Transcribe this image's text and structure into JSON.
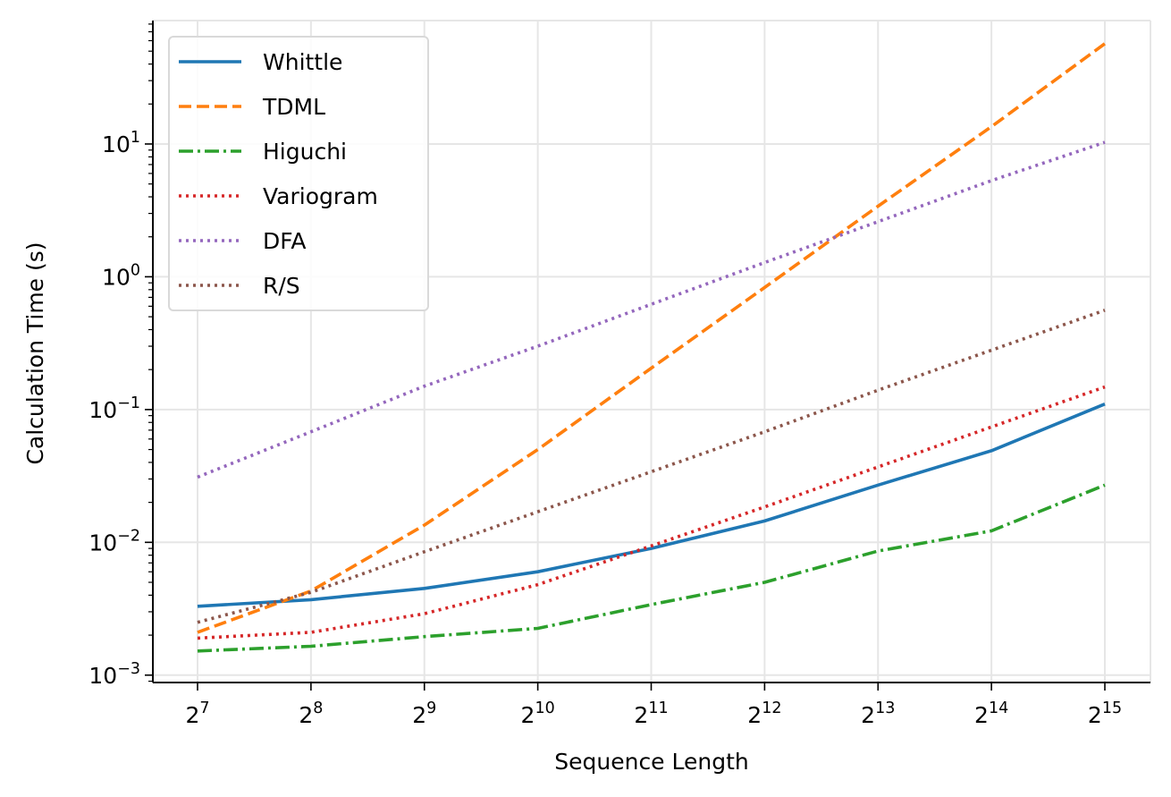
{
  "chart_data": {
    "type": "line",
    "xlabel": "Sequence Length",
    "ylabel": "Calculation Time (s)",
    "x_scale": "log2",
    "y_scale": "log10",
    "x": [
      128,
      256,
      512,
      1024,
      2048,
      4096,
      8192,
      16384,
      32768
    ],
    "x_ticks": [
      {
        "base": "2",
        "exp": "7"
      },
      {
        "base": "2",
        "exp": "8"
      },
      {
        "base": "2",
        "exp": "9"
      },
      {
        "base": "2",
        "exp": "10"
      },
      {
        "base": "2",
        "exp": "11"
      },
      {
        "base": "2",
        "exp": "12"
      },
      {
        "base": "2",
        "exp": "13"
      },
      {
        "base": "2",
        "exp": "14"
      },
      {
        "base": "2",
        "exp": "15"
      }
    ],
    "y_ticks": [
      {
        "base": "10",
        "exp": "−3",
        "value": 0.001
      },
      {
        "base": "10",
        "exp": "−2",
        "value": 0.01
      },
      {
        "base": "10",
        "exp": "−1",
        "value": 0.1
      },
      {
        "base": "10",
        "exp": "0",
        "value": 1
      },
      {
        "base": "10",
        "exp": "1",
        "value": 10
      }
    ],
    "ylim": [
      0.00088,
      85
    ],
    "grid": true,
    "legend_position": "top-left",
    "series": [
      {
        "name": "Whittle",
        "color": "#1f77b4",
        "style": "solid",
        "values": [
          0.0033,
          0.0037,
          0.0045,
          0.006,
          0.009,
          0.0145,
          0.027,
          0.049,
          0.11
        ]
      },
      {
        "name": "TDML",
        "color": "#ff7f0e",
        "style": "dashed",
        "values": [
          0.0021,
          0.0043,
          0.0135,
          0.05,
          0.205,
          0.83,
          3.4,
          13.5,
          57
        ]
      },
      {
        "name": "Higuchi",
        "color": "#2ca02c",
        "style": "dashdot",
        "values": [
          0.00152,
          0.00165,
          0.00195,
          0.00225,
          0.0034,
          0.005,
          0.0086,
          0.0122,
          0.027
        ]
      },
      {
        "name": "Variogram",
        "color": "#d62728",
        "style": "dotted",
        "values": [
          0.0019,
          0.0021,
          0.0029,
          0.0048,
          0.0094,
          0.0185,
          0.037,
          0.074,
          0.148
        ]
      },
      {
        "name": "DFA",
        "color": "#9467bd",
        "style": "dotted",
        "values": [
          0.031,
          0.068,
          0.15,
          0.3,
          0.62,
          1.28,
          2.6,
          5.3,
          10.3
        ]
      },
      {
        "name": "R/S",
        "color": "#8c564b",
        "style": "dotted",
        "values": [
          0.0025,
          0.0042,
          0.0085,
          0.017,
          0.034,
          0.068,
          0.14,
          0.28,
          0.56
        ]
      }
    ]
  }
}
